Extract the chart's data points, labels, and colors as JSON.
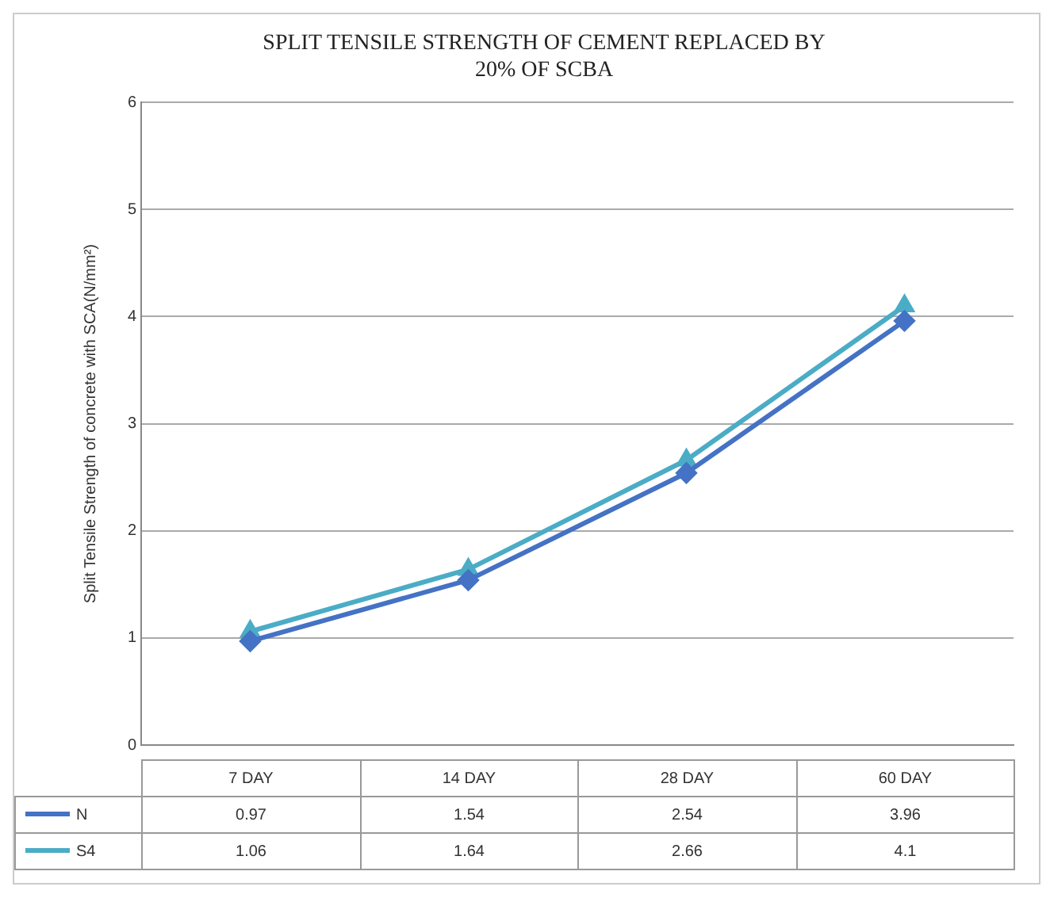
{
  "chart_data": {
    "type": "line",
    "title": "SPLIT TENSILE STRENGTH OF CEMENT REPLACED BY 20% OF SCBA",
    "ylabel": "Split Tensile Strength of concrete with SCA(N/mm²)",
    "categories": [
      "7 DAY",
      "14 DAY",
      "28 DAY",
      "60 DAY"
    ],
    "series": [
      {
        "name": "N",
        "color": "#4472c4",
        "values": [
          0.97,
          1.54,
          2.54,
          3.96
        ],
        "marker": "diamond"
      },
      {
        "name": "S4",
        "color": "#4bacc6",
        "values": [
          1.06,
          1.64,
          2.66,
          4.1
        ],
        "marker": "triangle"
      }
    ],
    "ylim": [
      0,
      6
    ],
    "yticks": [
      0,
      1,
      2,
      3,
      4,
      5,
      6
    ],
    "grid": "y",
    "legend": "bottom",
    "data_labels": true
  }
}
